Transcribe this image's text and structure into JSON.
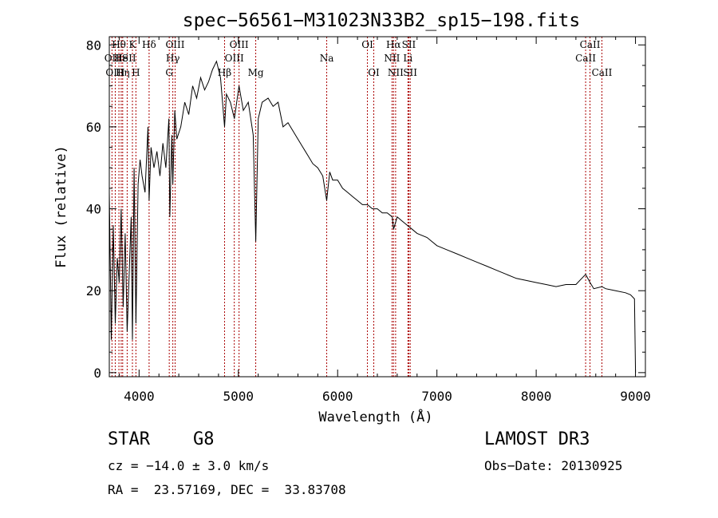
{
  "chart_data": {
    "type": "line",
    "title": "spec−56561−M31023N33B2_sp15−198.fits",
    "xlabel": "Wavelength (Å)",
    "ylabel": "Flux (relative)",
    "xlim": [
      3700,
      9100
    ],
    "ylim": [
      -1,
      82
    ],
    "xticks": [
      4000,
      5000,
      6000,
      7000,
      8000,
      9000
    ],
    "yticks": [
      0,
      20,
      40,
      60,
      80
    ],
    "series": [
      {
        "x": [
          3700,
          3720,
          3740,
          3760,
          3780,
          3800,
          3820,
          3840,
          3860,
          3880,
          3900,
          3920,
          3933,
          3950,
          3968,
          3990,
          4010,
          4030,
          4060,
          4090,
          4101,
          4120,
          4150,
          4180,
          4210,
          4240,
          4270,
          4300,
          4310,
          4330,
          4340,
          4360,
          4380,
          4420,
          4460,
          4500,
          4540,
          4580,
          4620,
          4660,
          4700,
          4740,
          4780,
          4820,
          4861,
          4880,
          4920,
          4960,
          5007,
          5050,
          5100,
          5150,
          5175,
          5200,
          5240,
          5300,
          5350,
          5400,
          5450,
          5500,
          5550,
          5600,
          5650,
          5700,
          5750,
          5800,
          5850,
          5890,
          5920,
          5950,
          6000,
          6050,
          6100,
          6150,
          6200,
          6250,
          6300,
          6350,
          6400,
          6450,
          6500,
          6550,
          6563,
          6600,
          6650,
          6700,
          6750,
          6800,
          6900,
          7000,
          7100,
          7200,
          7300,
          7400,
          7500,
          7600,
          7700,
          7800,
          7900,
          8000,
          8100,
          8200,
          8300,
          8400,
          8498,
          8542,
          8580,
          8662,
          8700,
          8800,
          8900,
          8950,
          8990,
          9000
        ],
        "values": [
          44,
          8,
          36,
          12,
          28,
          22,
          40,
          16,
          34,
          10,
          24,
          38,
          8,
          50,
          12,
          46,
          52,
          48,
          44,
          60,
          42,
          55,
          50,
          54,
          48,
          56,
          50,
          62,
          38,
          58,
          46,
          64,
          57,
          60,
          66,
          63,
          70,
          67,
          72,
          69,
          71,
          74,
          76,
          72,
          60,
          68,
          66,
          62,
          70,
          64,
          66,
          58,
          32,
          62,
          66,
          67,
          65,
          66,
          60,
          61,
          59,
          57,
          55,
          53,
          51,
          50,
          48,
          42,
          49,
          47,
          47,
          45,
          44,
          43,
          42,
          41,
          41,
          40,
          40,
          39,
          39,
          38,
          35,
          38,
          37,
          36,
          35,
          34,
          33,
          31,
          30,
          29,
          28,
          27,
          26,
          25,
          24,
          23,
          22.5,
          22,
          21.5,
          21,
          21.5,
          21.5,
          24,
          22,
          20.5,
          21,
          20.5,
          20,
          19.5,
          19,
          18,
          0
        ]
      }
    ],
    "lines": [
      {
        "label": "Hθ",
        "x": 3797,
        "row": 0
      },
      {
        "label": "OII",
        "x": 3727,
        "row": 1
      },
      {
        "label": "OIII",
        "x": 3760,
        "row": 2
      },
      {
        "label": "He",
        "x": 3820,
        "row": 1
      },
      {
        "label": "Hη",
        "x": 3835,
        "row": 2
      },
      {
        "label": "K",
        "x": 3933,
        "row": 0
      },
      {
        "label": "ISII",
        "x": 3880,
        "row": 1
      },
      {
        "label": "H",
        "x": 3968,
        "row": 2
      },
      {
        "label": "Hδ",
        "x": 4101,
        "row": 0
      },
      {
        "label": "OIII",
        "x": 4363,
        "row": 0
      },
      {
        "label": "Hγ",
        "x": 4340,
        "row": 1
      },
      {
        "label": "G",
        "x": 4304,
        "row": 2
      },
      {
        "label": "OIII",
        "x": 5007,
        "row": 0
      },
      {
        "label": "OIII",
        "x": 4959,
        "row": 1
      },
      {
        "label": "Hβ",
        "x": 4861,
        "row": 2
      },
      {
        "label": "Mg",
        "x": 5175,
        "row": 2
      },
      {
        "label": "Na",
        "x": 5890,
        "row": 1
      },
      {
        "label": "OI",
        "x": 6300,
        "row": 0
      },
      {
        "label": "OI",
        "x": 6364,
        "row": 2
      },
      {
        "label": "Hα",
        "x": 6563,
        "row": 0
      },
      {
        "label": "NII",
        "x": 6548,
        "row": 1
      },
      {
        "label": "NII",
        "x": 6584,
        "row": 2
      },
      {
        "label": "SII",
        "x": 6717,
        "row": 0
      },
      {
        "label": "Li",
        "x": 6708,
        "row": 1
      },
      {
        "label": "SII",
        "x": 6731,
        "row": 2
      },
      {
        "label": "CaII",
        "x": 8542,
        "row": 0
      },
      {
        "label": "CaII",
        "x": 8498,
        "row": 1
      },
      {
        "label": "CaII",
        "x": 8662,
        "row": 2
      }
    ],
    "colors": {
      "line": "#000000",
      "marker": "#aa0000",
      "axis": "#000000"
    }
  },
  "info": {
    "class_label": "STAR",
    "subclass": "G8",
    "survey": "LAMOST DR3",
    "cz": "cz = −14.0 ± 3.0 km/s",
    "obs_date": "Obs−Date: 20130925",
    "coords": "RA =  23.57169, DEC =  33.83708"
  }
}
